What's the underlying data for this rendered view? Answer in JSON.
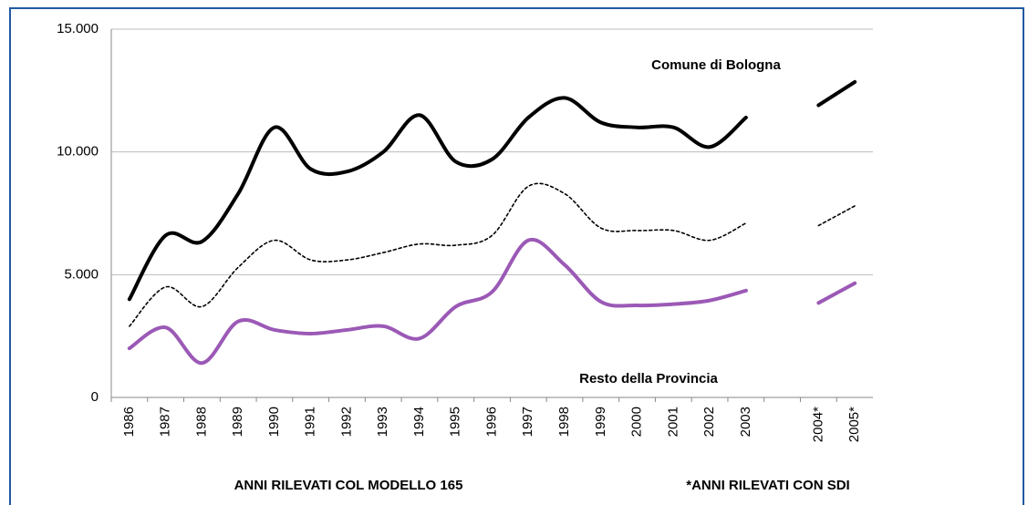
{
  "chart_data": {
    "type": "line",
    "categories": [
      "1986",
      "1987",
      "1988",
      "1989",
      "1990",
      "1991",
      "1992",
      "1993",
      "1994",
      "1995",
      "1996",
      "1997",
      "1998",
      "1999",
      "2000",
      "2001",
      "2002",
      "2003",
      null,
      "2004*",
      "2005*"
    ],
    "series": [
      {
        "name": "Comune di Bologna",
        "color": "#000000",
        "style": "solid",
        "values": [
          4000,
          6600,
          6350,
          8300,
          11000,
          9300,
          9200,
          10000,
          11500,
          9600,
          9700,
          11400,
          12200,
          11200,
          11000,
          11000,
          10200,
          11400,
          null,
          11900,
          12850
        ]
      },
      {
        "color": "#000000",
        "style": "dotted",
        "values": [
          2900,
          4500,
          3700,
          5300,
          6400,
          5600,
          5600,
          5900,
          6250,
          6200,
          6600,
          8600,
          8300,
          6900,
          6800,
          6800,
          6400,
          7100,
          null,
          7000,
          7800
        ]
      },
      {
        "name": "Resto della Provincia",
        "color": "#9b59b6",
        "style": "solid",
        "values": [
          2000,
          2850,
          1400,
          3100,
          2750,
          2600,
          2750,
          2900,
          2400,
          3700,
          4300,
          6400,
          5400,
          3900,
          3750,
          3800,
          3950,
          4350,
          null,
          3850,
          4650
        ]
      }
    ],
    "ylim": [
      0,
      15000
    ],
    "yticks": [
      0,
      {
        "value": 5000,
        "label": "5.000"
      },
      {
        "value": 10000,
        "label": "10.000"
      },
      {
        "value": 15000,
        "label": "15.000"
      }
    ],
    "grid": true,
    "footnotes": [
      "ANNI RILEVATI COL MODELLO 165",
      "*ANNI RILEVATI CON SDI"
    ]
  }
}
